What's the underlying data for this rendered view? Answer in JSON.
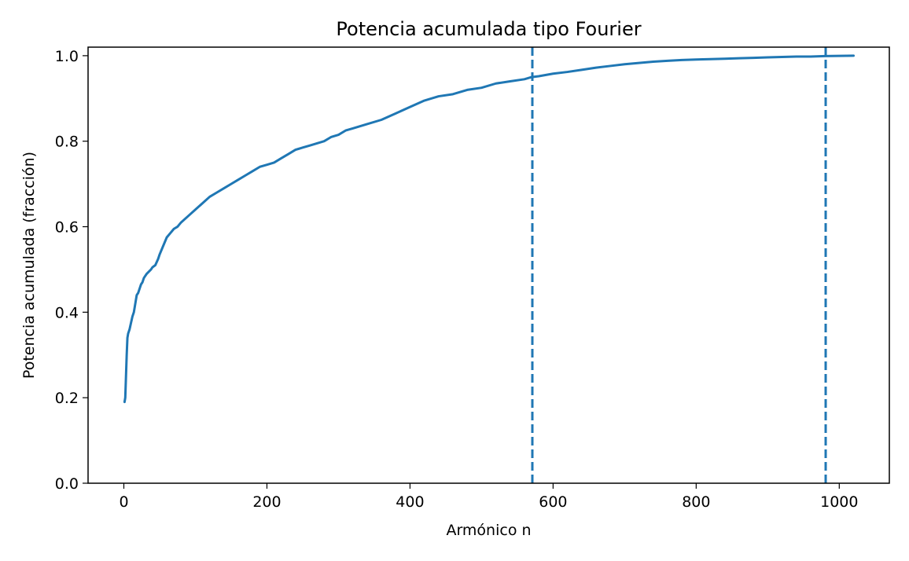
{
  "chart_data": {
    "type": "line",
    "title": "Potencia acumulada tipo Fourier",
    "xlabel": "Armónico n",
    "ylabel": "Potencia acumulada (fracción)",
    "xlim": [
      -50,
      1070
    ],
    "ylim": [
      0,
      1.02
    ],
    "xticks": [
      0,
      200,
      400,
      600,
      800,
      1000
    ],
    "xtick_labels": [
      "0",
      "200",
      "400",
      "600",
      "800",
      "1000"
    ],
    "yticks": [
      0,
      0.2,
      0.4,
      0.6,
      0.8,
      1.0
    ],
    "ytick_labels": [
      "0.0",
      "0.2",
      "0.4",
      "0.6",
      "0.8",
      "1.0"
    ],
    "grid": false,
    "series": [
      {
        "color": "#1f77b4",
        "x": [
          1,
          2,
          3,
          4,
          5,
          6,
          8,
          10,
          12,
          14,
          16,
          18,
          20,
          22,
          24,
          26,
          28,
          30,
          32,
          35,
          38,
          40,
          44,
          48,
          50,
          55,
          60,
          65,
          70,
          75,
          80,
          90,
          100,
          110,
          120,
          130,
          140,
          150,
          160,
          170,
          180,
          190,
          200,
          210,
          220,
          230,
          240,
          250,
          260,
          270,
          280,
          290,
          300,
          310,
          320,
          340,
          360,
          380,
          400,
          420,
          440,
          460,
          480,
          500,
          520,
          540,
          560,
          570,
          580,
          600,
          620,
          640,
          660,
          680,
          700,
          720,
          740,
          760,
          780,
          800,
          820,
          840,
          860,
          880,
          900,
          920,
          940,
          960,
          980,
          1000,
          1020
        ],
        "y": [
          0.19,
          0.2,
          0.25,
          0.3,
          0.34,
          0.35,
          0.36,
          0.375,
          0.39,
          0.4,
          0.42,
          0.44,
          0.445,
          0.455,
          0.465,
          0.47,
          0.48,
          0.485,
          0.49,
          0.495,
          0.5,
          0.505,
          0.51,
          0.525,
          0.535,
          0.555,
          0.575,
          0.585,
          0.595,
          0.6,
          0.61,
          0.625,
          0.64,
          0.655,
          0.67,
          0.68,
          0.69,
          0.7,
          0.71,
          0.72,
          0.73,
          0.74,
          0.745,
          0.75,
          0.76,
          0.77,
          0.78,
          0.785,
          0.79,
          0.795,
          0.8,
          0.81,
          0.815,
          0.825,
          0.83,
          0.84,
          0.85,
          0.865,
          0.88,
          0.895,
          0.905,
          0.91,
          0.92,
          0.925,
          0.935,
          0.94,
          0.945,
          0.95,
          0.952,
          0.958,
          0.962,
          0.967,
          0.972,
          0.976,
          0.98,
          0.983,
          0.986,
          0.988,
          0.99,
          0.991,
          0.992,
          0.993,
          0.994,
          0.995,
          0.996,
          0.997,
          0.998,
          0.998,
          0.999,
          0.9995,
          1.0
        ]
      }
    ],
    "vlines": [
      {
        "x": 571,
        "color": "#1f77b4",
        "style": "dashed"
      },
      {
        "x": 981,
        "color": "#1f77b4",
        "style": "dashed"
      }
    ]
  }
}
